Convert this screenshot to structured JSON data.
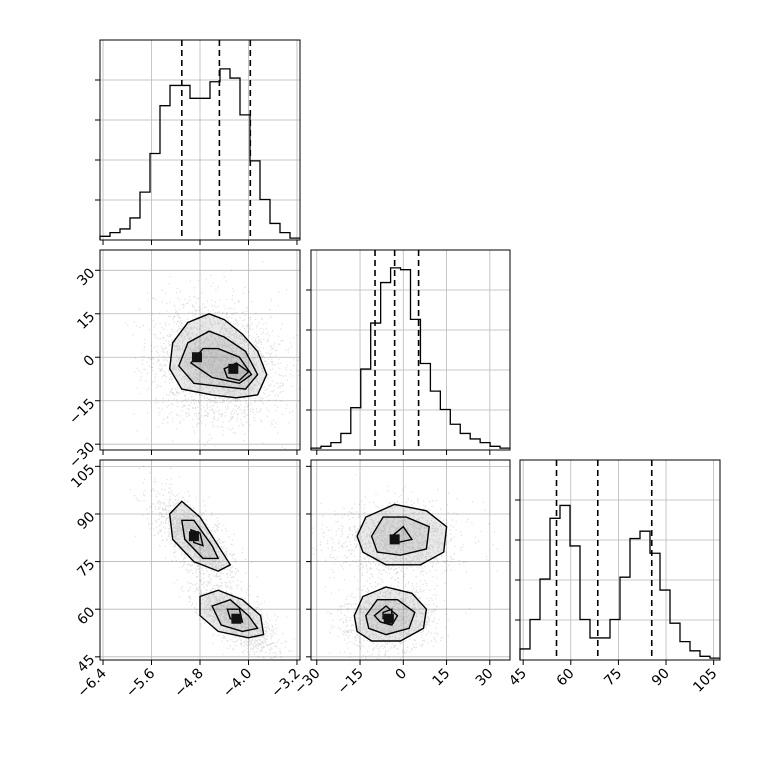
{
  "chart_data": {
    "type": "corner",
    "grid": true,
    "quantile_style": "dashed",
    "params": [
      {
        "ticks": [
          -6.4,
          -5.6,
          -4.8,
          -4.0,
          -3.2
        ],
        "tick_labels": [
          "−6.4",
          "−5.6",
          "−4.8",
          "−4.0",
          "−3.2"
        ],
        "range": [
          -6.45,
          -3.15
        ]
      },
      {
        "ticks": [
          -30,
          -15,
          0,
          15,
          30
        ],
        "tick_labels": [
          "−30",
          "−15",
          "0",
          "15",
          "30"
        ],
        "range": [
          -32,
          37
        ]
      },
      {
        "ticks": [
          45,
          60,
          75,
          90,
          105
        ],
        "tick_labels": [
          "45",
          "60",
          "75",
          "90",
          "105"
        ],
        "range": [
          44,
          107
        ]
      }
    ],
    "quantiles": [
      [
        -5.1,
        -4.48,
        -3.97
      ],
      [
        -9.8,
        -3.0,
        5.3
      ],
      [
        55.5,
        68.5,
        85.5
      ]
    ],
    "histograms": [
      {
        "param": 0,
        "edges_start": -6.45,
        "edges_end": -3.15,
        "counts": [
          0.02,
          0.04,
          0.06,
          0.12,
          0.26,
          0.47,
          0.73,
          0.84,
          0.84,
          0.77,
          0.77,
          0.86,
          0.93,
          0.88,
          0.68,
          0.43,
          0.22,
          0.09,
          0.04,
          0.01
        ]
      },
      {
        "param": 1,
        "edges_start": -32,
        "edges_end": 37,
        "counts": [
          0.01,
          0.02,
          0.04,
          0.09,
          0.23,
          0.44,
          0.69,
          0.91,
          0.99,
          0.98,
          0.71,
          0.47,
          0.32,
          0.22,
          0.14,
          0.09,
          0.06,
          0.04,
          0.02,
          0.01
        ]
      },
      {
        "param": 2,
        "edges_start": 44,
        "edges_end": 107,
        "counts": [
          0.06,
          0.22,
          0.44,
          0.77,
          0.84,
          0.62,
          0.22,
          0.12,
          0.12,
          0.22,
          0.45,
          0.66,
          0.7,
          0.58,
          0.38,
          0.2,
          0.1,
          0.05,
          0.02,
          0.01
        ]
      }
    ],
    "scatter_2d": [
      {
        "x_param": 0,
        "y_param": 1,
        "clusters": [
          {
            "mx": -4.25,
            "my": -4,
            "sx": 0.3,
            "sy": 7,
            "w": 0.55
          },
          {
            "mx": -4.85,
            "my": 0,
            "sx": 0.3,
            "sy": 8,
            "w": 0.45
          }
        ],
        "contours": [
          [
            [
              -5.3,
              -4
            ],
            [
              -5.25,
              5
            ],
            [
              -5.0,
              12
            ],
            [
              -4.65,
              15
            ],
            [
              -4.4,
              13
            ],
            [
              -4.1,
              8
            ],
            [
              -3.85,
              2
            ],
            [
              -3.7,
              -6
            ],
            [
              -3.85,
              -13
            ],
            [
              -4.2,
              -14
            ],
            [
              -4.6,
              -13
            ],
            [
              -5.1,
              -11
            ],
            [
              -5.3,
              -4
            ]
          ],
          [
            [
              -5.15,
              -3
            ],
            [
              -5.0,
              5
            ],
            [
              -4.65,
              9
            ],
            [
              -4.4,
              7
            ],
            [
              -4.05,
              2
            ],
            [
              -3.85,
              -6
            ],
            [
              -4.05,
              -11
            ],
            [
              -4.5,
              -10
            ],
            [
              -4.9,
              -9
            ],
            [
              -5.15,
              -3
            ]
          ],
          [
            [
              -4.95,
              -2
            ],
            [
              -4.75,
              3
            ],
            [
              -4.5,
              3
            ],
            [
              -4.15,
              0
            ],
            [
              -3.95,
              -6
            ],
            [
              -4.15,
              -9
            ],
            [
              -4.6,
              -7
            ],
            [
              -4.95,
              -2
            ]
          ],
          [
            [
              -4.4,
              -4
            ],
            [
              -4.2,
              -2
            ],
            [
              -4.0,
              -5
            ],
            [
              -4.15,
              -8
            ],
            [
              -4.35,
              -7
            ],
            [
              -4.4,
              -4
            ]
          ]
        ]
      },
      {
        "x_param": 0,
        "y_param": 2,
        "clusters": [
          {
            "mx": -4.9,
            "my": 83,
            "sx": 0.25,
            "sy": 5,
            "w": 0.5,
            "corr": -0.7
          },
          {
            "mx": -4.2,
            "my": 57,
            "sx": 0.25,
            "sy": 4,
            "w": 0.5,
            "corr": -0.7
          }
        ],
        "contours": [
          [
            [
              -5.3,
              90
            ],
            [
              -5.1,
              94
            ],
            [
              -4.8,
              89
            ],
            [
              -4.5,
              80
            ],
            [
              -4.3,
              74
            ],
            [
              -4.5,
              72
            ],
            [
              -4.9,
              75
            ],
            [
              -5.25,
              82
            ],
            [
              -5.3,
              90
            ]
          ],
          [
            [
              -5.1,
              88
            ],
            [
              -4.9,
              88
            ],
            [
              -4.6,
              80
            ],
            [
              -4.5,
              76
            ],
            [
              -4.75,
              76
            ],
            [
              -5.05,
              82
            ],
            [
              -5.1,
              88
            ]
          ],
          [
            [
              -4.95,
              85
            ],
            [
              -4.8,
              84
            ],
            [
              -4.75,
              80
            ],
            [
              -4.9,
              81
            ],
            [
              -4.95,
              85
            ]
          ],
          [
            [
              -4.8,
              64
            ],
            [
              -4.5,
              66
            ],
            [
              -4.1,
              63
            ],
            [
              -3.8,
              58
            ],
            [
              -3.75,
              52
            ],
            [
              -4.0,
              51
            ],
            [
              -4.5,
              53
            ],
            [
              -4.8,
              58
            ],
            [
              -4.8,
              64
            ]
          ],
          [
            [
              -4.6,
              61
            ],
            [
              -4.3,
              63
            ],
            [
              -4.0,
              58
            ],
            [
              -3.85,
              54
            ],
            [
              -4.1,
              53
            ],
            [
              -4.45,
              55
            ],
            [
              -4.6,
              61
            ]
          ],
          [
            [
              -4.35,
              60
            ],
            [
              -4.15,
              60
            ],
            [
              -4.1,
              56
            ],
            [
              -4.3,
              57
            ],
            [
              -4.35,
              60
            ]
          ]
        ]
      },
      {
        "x_param": 1,
        "y_param": 2,
        "clusters": [
          {
            "mx": -3,
            "my": 82,
            "sx": 8,
            "sy": 4.5,
            "w": 0.5
          },
          {
            "mx": -5,
            "my": 57,
            "sx": 6,
            "sy": 4,
            "w": 0.5
          }
        ],
        "contours": [
          [
            [
              -16,
              83
            ],
            [
              -13,
              89
            ],
            [
              -3,
              93
            ],
            [
              8,
              91
            ],
            [
              15,
              86
            ],
            [
              14,
              78
            ],
            [
              6,
              74
            ],
            [
              -6,
              74
            ],
            [
              -14,
              78
            ],
            [
              -16,
              83
            ]
          ],
          [
            [
              -11,
              83
            ],
            [
              -7,
              89
            ],
            [
              1,
              89
            ],
            [
              9,
              86
            ],
            [
              8,
              79
            ],
            [
              -1,
              77
            ],
            [
              -9,
              78
            ],
            [
              -11,
              83
            ]
          ],
          [
            [
              -4,
              83
            ],
            [
              0,
              86
            ],
            [
              3,
              82
            ],
            [
              -2,
              81
            ],
            [
              -4,
              83
            ]
          ],
          [
            [
              -17,
              58
            ],
            [
              -14,
              64
            ],
            [
              -6,
              67
            ],
            [
              3,
              65
            ],
            [
              8,
              60
            ],
            [
              7,
              54
            ],
            [
              -1,
              50
            ],
            [
              -11,
              50
            ],
            [
              -16,
              53
            ],
            [
              -17,
              58
            ]
          ],
          [
            [
              -13,
              58
            ],
            [
              -9,
              63
            ],
            [
              -2,
              63
            ],
            [
              4,
              59
            ],
            [
              2,
              54
            ],
            [
              -6,
              52
            ],
            [
              -12,
              54
            ],
            [
              -13,
              58
            ]
          ],
          [
            [
              -10,
              58
            ],
            [
              -6,
              61
            ],
            [
              -2,
              58
            ],
            [
              -4,
              55
            ],
            [
              -8,
              56
            ],
            [
              -10,
              58
            ]
          ],
          [
            [
              -7,
              59
            ],
            [
              -4,
              60
            ],
            [
              -4,
              57
            ],
            [
              -7,
              57
            ],
            [
              -7,
              59
            ]
          ]
        ]
      }
    ]
  }
}
